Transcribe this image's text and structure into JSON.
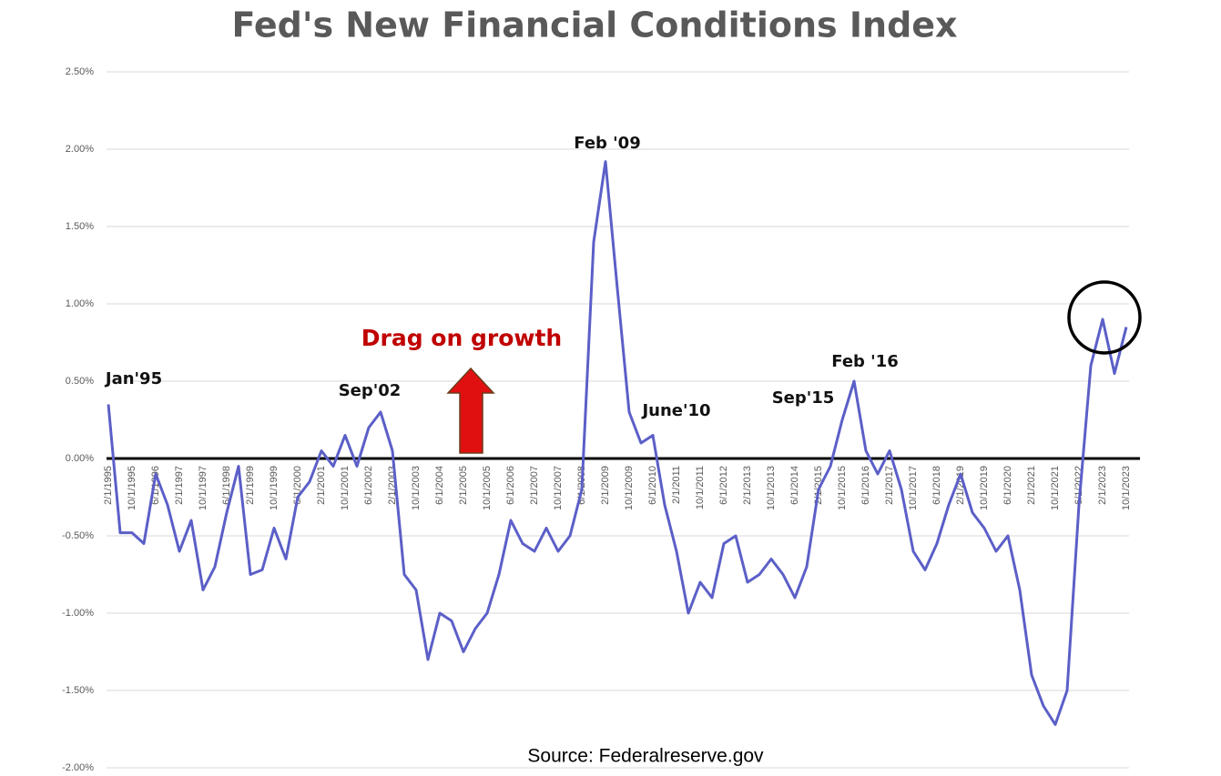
{
  "chart_data": {
    "type": "line",
    "title": "Fed's New Financial Conditions Index",
    "source": "Source: Federalreserve.gov",
    "annotations": [
      "Jan'95",
      "Sep'02",
      "Feb '09",
      "June'10",
      "Sep'15",
      "Feb '16",
      "Drag on growth"
    ],
    "categories": [
      "2/1/1995",
      null,
      "10/1/1995",
      null,
      "6/1/1996",
      null,
      "2/1/1997",
      null,
      "10/1/1997",
      null,
      "6/1/1998",
      null,
      "2/1/1999",
      null,
      "10/1/1999",
      null,
      "6/1/2000",
      null,
      "2/1/2001",
      null,
      "10/1/2001",
      null,
      "6/1/2002",
      null,
      "2/1/2003",
      null,
      "10/1/2003",
      null,
      "6/1/2004",
      null,
      "2/1/2005",
      null,
      "10/1/2005",
      null,
      "6/1/2006",
      null,
      "2/1/2007",
      null,
      "10/1/2007",
      null,
      "6/1/2008",
      null,
      "2/1/2009",
      null,
      "10/1/2009",
      null,
      "6/1/2010",
      null,
      "2/1/2011",
      null,
      "10/1/2011",
      null,
      "6/1/2012",
      null,
      "2/1/2013",
      null,
      "10/1/2013",
      null,
      "6/1/2014",
      null,
      "2/1/2015",
      null,
      "10/1/2015",
      null,
      "6/1/2016",
      null,
      "2/1/2017",
      null,
      "10/1/2017",
      null,
      "6/1/2018",
      null,
      "2/1/2019",
      null,
      "10/1/2019",
      null,
      "6/1/2020",
      null,
      "2/1/2021",
      null,
      "10/1/2021",
      null,
      "6/1/2022",
      null,
      "2/1/2023",
      null,
      "10/1/2023"
    ],
    "series": [
      {
        "name": "Financial Conditions Index",
        "color": "#5b5fc7",
        "values": [
          0.35,
          -0.48,
          -0.48,
          -0.55,
          -0.1,
          -0.3,
          -0.6,
          -0.4,
          -0.85,
          -0.7,
          -0.35,
          -0.05,
          -0.75,
          -0.72,
          -0.45,
          -0.65,
          -0.25,
          -0.15,
          0.05,
          -0.05,
          0.15,
          -0.05,
          0.2,
          0.3,
          0.05,
          -0.75,
          -0.85,
          -1.3,
          -1.0,
          -1.05,
          -1.25,
          -1.1,
          -1.0,
          -0.75,
          -0.4,
          -0.55,
          -0.6,
          -0.45,
          -0.6,
          -0.5,
          -0.2,
          1.4,
          1.92,
          1.1,
          0.3,
          0.1,
          0.15,
          -0.3,
          -0.6,
          -1.0,
          -0.8,
          -0.9,
          -0.55,
          -0.5,
          -0.8,
          -0.75,
          -0.65,
          -0.75,
          -0.9,
          -0.7,
          -0.2,
          -0.05,
          0.25,
          0.5,
          0.05,
          -0.1,
          0.05,
          -0.2,
          -0.6,
          -0.72,
          -0.55,
          -0.3,
          -0.1,
          -0.35,
          -0.45,
          -0.6,
          -0.5,
          -0.85,
          -1.4,
          -1.6,
          -1.72,
          -1.5,
          -0.3,
          0.6,
          0.9,
          0.55,
          0.85
        ]
      }
    ],
    "ylim": [
      -2,
      2.5
    ],
    "yticks": [
      {
        "value": -2,
        "label": "-2.00%"
      },
      {
        "value": -1.5,
        "label": "-1.50%"
      },
      {
        "value": -1,
        "label": "-1.00%"
      },
      {
        "value": -0.5,
        "label": "-0.50%"
      },
      {
        "value": 0,
        "label": "0.00%"
      },
      {
        "value": 0.5,
        "label": "0.50%"
      },
      {
        "value": 1,
        "label": "1.00%"
      },
      {
        "value": 1.5,
        "label": "1.50%"
      },
      {
        "value": 2,
        "label": "2.00%"
      },
      {
        "value": 2.5,
        "label": "2.50%"
      }
    ],
    "grid": true
  }
}
